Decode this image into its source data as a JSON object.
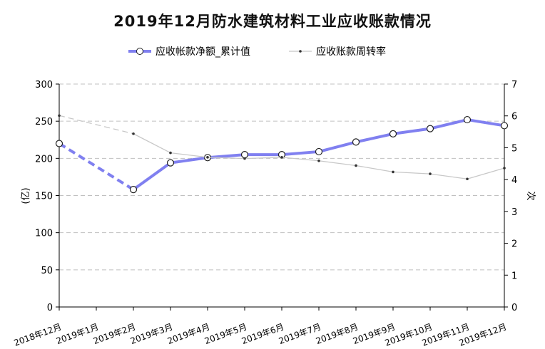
{
  "chart_data": {
    "type": "line",
    "title": "2019年12月防水建筑材料工业应收账款情况",
    "categories": [
      "2018年12月",
      "2019年1月",
      "2019年2月",
      "2019年3月",
      "2019年4月",
      "2019年5月",
      "2019年6月",
      "2019年7月",
      "2019年8月",
      "2019年9月",
      "2019年10月",
      "2019年11月",
      "2019年12月"
    ],
    "y_left": {
      "label": "(亿)",
      "range": [
        0,
        300
      ],
      "ticks": [
        0,
        50,
        100,
        150,
        200,
        250,
        300
      ]
    },
    "y_right": {
      "label": "次",
      "range": [
        0,
        7
      ],
      "ticks": [
        0,
        1,
        2,
        3,
        4,
        5,
        6,
        7
      ]
    },
    "grid": true,
    "legend_position": "top",
    "series": [
      {
        "name": "应收帐款净额_累计值",
        "axis": "left",
        "color": "#8080f0",
        "values": [
          220,
          null,
          158,
          194,
          201,
          205,
          205,
          209,
          222,
          233,
          240,
          252,
          244
        ]
      },
      {
        "name": "应收账款周转率",
        "axis": "right",
        "color": "#c8c8c8",
        "values": [
          6.01,
          null,
          5.44,
          4.84,
          4.7,
          4.66,
          4.7,
          4.59,
          4.44,
          4.24,
          4.18,
          4.02,
          4.36
        ]
      }
    ]
  }
}
